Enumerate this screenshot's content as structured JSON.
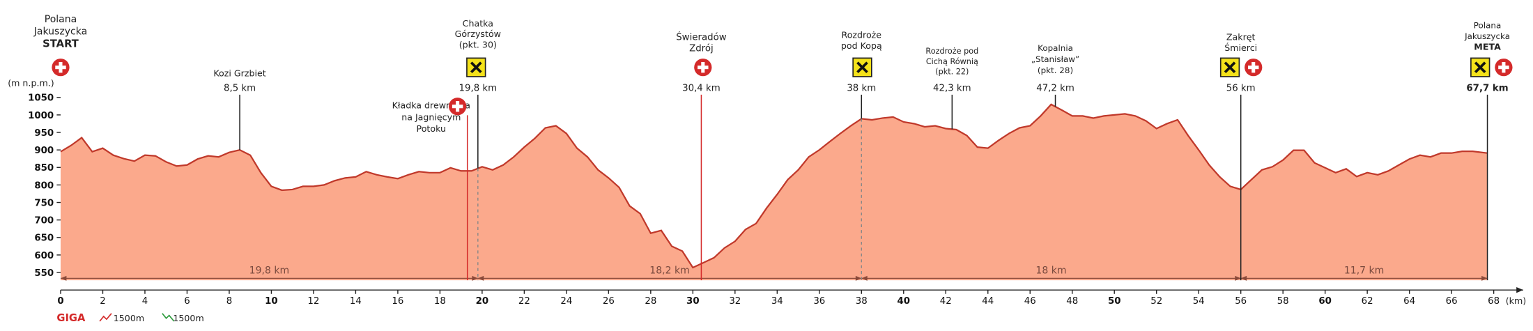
{
  "chart_data": {
    "type": "area",
    "x": [
      0,
      0.5,
      1,
      1.5,
      2,
      2.5,
      3,
      3.5,
      4,
      4.5,
      5,
      5.5,
      6,
      6.5,
      7,
      7.5,
      8,
      8.5,
      9,
      9.5,
      10,
      10.5,
      11,
      11.5,
      12,
      12.5,
      13,
      13.5,
      14,
      14.5,
      15,
      15.5,
      16,
      16.5,
      17,
      17.5,
      18,
      18.5,
      19,
      19.5,
      20,
      20.5,
      21,
      21.5,
      22,
      22.5,
      23,
      23.5,
      24,
      24.5,
      25,
      25.5,
      26,
      26.5,
      27,
      27.5,
      28,
      28.5,
      29,
      29.5,
      30,
      30.5,
      31,
      31.5,
      32,
      32.5,
      33,
      33.5,
      34,
      34.5,
      35,
      35.5,
      36,
      36.5,
      37,
      37.5,
      38,
      38.5,
      39,
      39.5,
      40,
      40.5,
      41,
      41.5,
      42,
      42.5,
      43,
      43.5,
      44,
      44.5,
      45,
      45.5,
      46,
      46.5,
      47,
      47.5,
      48,
      48.5,
      49,
      49.5,
      50,
      50.5,
      51,
      51.5,
      52,
      52.5,
      53,
      53.5,
      54,
      54.5,
      55,
      55.5,
      56,
      56.5,
      57,
      57.5,
      58,
      58.5,
      59,
      59.5,
      60,
      60.5,
      61,
      61.5,
      62,
      62.5,
      63,
      63.5,
      64,
      64.5,
      65,
      65.5,
      66,
      66.5,
      67,
      67.7
    ],
    "values": [
      895,
      913,
      935,
      895,
      905,
      885,
      875,
      868,
      885,
      883,
      866,
      854,
      857,
      874,
      883,
      880,
      893,
      900,
      885,
      835,
      796,
      785,
      787,
      796,
      796,
      800,
      812,
      820,
      823,
      838,
      829,
      823,
      818,
      829,
      838,
      835,
      835,
      849,
      840,
      840,
      852,
      843,
      857,
      880,
      908,
      933,
      963,
      969,
      947,
      905,
      880,
      843,
      820,
      793,
      740,
      718,
      662,
      670,
      625,
      611,
      564,
      578,
      592,
      620,
      639,
      673,
      690,
      734,
      773,
      815,
      843,
      880,
      900,
      924,
      947,
      969,
      989,
      986,
      991,
      994,
      980,
      975,
      966,
      969,
      961,
      958,
      941,
      908,
      905,
      927,
      947,
      963,
      969,
      997,
      1030,
      1014,
      997,
      997,
      991,
      997,
      1000,
      1003,
      997,
      983,
      961,
      975,
      986,
      941,
      900,
      857,
      823,
      796,
      787,
      815,
      843,
      852,
      871,
      899,
      899,
      863,
      849,
      835,
      846,
      824,
      835,
      829,
      840,
      857,
      874,
      885,
      880,
      891,
      891,
      896,
      896,
      891
    ],
    "color": "#fba98c",
    "line_color": "#c0392b",
    "xlim": [
      0,
      69.4
    ],
    "ylim": [
      500,
      1080
    ],
    "xticks": [
      0,
      2,
      4,
      6,
      8,
      10,
      12,
      14,
      16,
      18,
      20,
      22,
      24,
      26,
      28,
      30,
      32,
      34,
      36,
      38,
      40,
      42,
      44,
      46,
      48,
      50,
      52,
      54,
      56,
      58,
      60,
      62,
      64,
      66,
      68
    ],
    "yticks": [
      550,
      600,
      650,
      700,
      750,
      800,
      850,
      900,
      950,
      1000,
      1050
    ],
    "ylabel": "(m n.p.m.)",
    "xlabel": "(km)",
    "waypoints": [
      {
        "x": 0,
        "lines": [
          "Polana",
          "Jakuszycka"
        ],
        "tag": "START"
      },
      {
        "x": 8.5,
        "lines": [
          "Kozi Grzbiet"
        ],
        "label": "8,5 km"
      },
      {
        "x": 19.3,
        "lines": [
          "Kładka drewniana",
          "na Jagnięcym",
          "Potoku"
        ],
        "color": "#d42a2a"
      },
      {
        "x": 19.8,
        "lines": [
          "Chatka",
          "Górzystów",
          "(pkt. 30)"
        ],
        "label": "19,8 km"
      },
      {
        "x": 30.4,
        "lines": [
          "Świeradów",
          "Zdrój"
        ],
        "label": "30,4 km",
        "color": "#d42a2a"
      },
      {
        "x": 38,
        "lines": [
          "Rozdroże",
          "pod Kopą"
        ],
        "label": "38 km"
      },
      {
        "x": 42.3,
        "lines": [
          "Rozdroże pod",
          "Cichą Równią",
          "(pkt. 22)"
        ],
        "label": "42,3 km"
      },
      {
        "x": 47.2,
        "lines": [
          "Kopalnia",
          "„Stanisław”",
          "(pkt. 28)"
        ],
        "label": "47,2 km"
      },
      {
        "x": 56,
        "lines": [
          "Zakręt",
          "Śmierci"
        ],
        "label": "56 km"
      },
      {
        "x": 67.7,
        "lines": [
          "Polana",
          "Jakuszycka"
        ],
        "tag": "META",
        "label": "67,7 km"
      }
    ],
    "segments": [
      {
        "start": 0,
        "end": 19.8,
        "label": "19,8 km"
      },
      {
        "start": 19.8,
        "end": 38,
        "label": "18,2 km"
      },
      {
        "start": 38,
        "end": 56,
        "label": "18 km"
      },
      {
        "start": 56,
        "end": 67.7,
        "label": "11,7 km"
      }
    ],
    "legend": {
      "name": "GIGA",
      "ascent": "1500m",
      "descent": "1500m"
    }
  }
}
